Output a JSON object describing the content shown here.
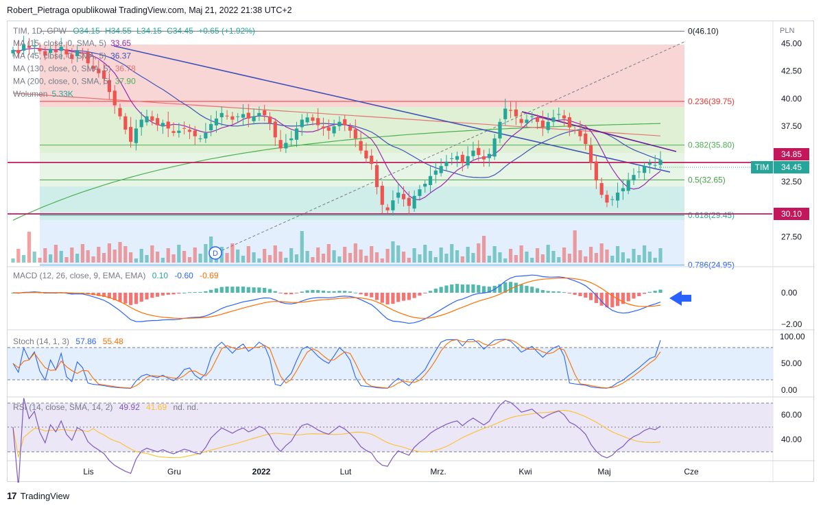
{
  "header": {
    "published_by": "Robert_Pietraga opublikował TradingView.com, Maj 21, 2022 21:38 UTC+2"
  },
  "footer": {
    "brand": "TradingView"
  },
  "chart_data": {
    "type": "candlestick",
    "symbol_line": {
      "symbol": "TIM, 1D, GPW",
      "open": "O34.15",
      "high": "H34.55",
      "low": "L34.15",
      "close": "C34.45",
      "change": "+0.65 (+1.92%)"
    },
    "currency": "PLN",
    "indicator_legend": [
      {
        "label": "MA (15, close, 0, SMA, 5)",
        "value": "33.65",
        "color": "#9c27b0"
      },
      {
        "label": "MA (45, close, 0, SMA, 5)",
        "value": "36.37",
        "color": "#3f51b5"
      },
      {
        "label": "MA (130, close, 0, SMA, 5)",
        "value": "36.78",
        "color": "#e57373"
      },
      {
        "label": "MA (200, close, 0, SMA, 5)",
        "value": "37.90",
        "color": "#4caf50"
      },
      {
        "label": "Wolumen",
        "value": "5.33K",
        "color": "#26a69a"
      }
    ],
    "price_axis": {
      "ticks": [
        "45.00",
        "42.50",
        "40.00",
        "37.50",
        "32.50",
        "27.50"
      ],
      "range": [
        24.8,
        47.0
      ]
    },
    "fib_levels": [
      {
        "label": "0(46.10)",
        "price": 46.1
      },
      {
        "label": "0.236(39.75)",
        "price": 39.75
      },
      {
        "label": "0.382(35.80)",
        "price": 35.8
      },
      {
        "label": "0.5(32.65)",
        "price": 32.65
      },
      {
        "label": "0.618(29.45)",
        "price": 29.45
      },
      {
        "label": "0.786(24.95)",
        "price": 24.95
      }
    ],
    "horizontal_lines": [
      {
        "price": 34.85,
        "label": "34.85"
      },
      {
        "price": 30.1,
        "label": "30.10"
      }
    ],
    "last_price": {
      "symbol": "TIM",
      "value": "34.45",
      "price": 34.45
    },
    "time_axis": [
      "Lis",
      "Gru",
      "2022",
      "Lut",
      "Mrz.",
      "Kwi",
      "Maj",
      "Cze"
    ],
    "dividend_marker": "D",
    "closes": [
      44.4,
      44.1,
      44.9,
      44.6,
      44.8,
      44.3,
      43.9,
      44.5,
      44.2,
      44.7,
      44.0,
      43.6,
      44.3,
      44.1,
      43.2,
      42.7,
      42.3,
      41.8,
      40.6,
      39.4,
      38.4,
      37.2,
      36.1,
      37.3,
      38.1,
      38.4,
      38.0,
      37.6,
      37.8,
      37.3,
      36.9,
      37.1,
      37.3,
      37.0,
      36.6,
      36.4,
      36.9,
      37.7,
      38.2,
      38.7,
      38.4,
      38.1,
      38.4,
      38.6,
      38.2,
      38.4,
      38.7,
      38.5,
      37.8,
      36.5,
      35.5,
      36.0,
      36.4,
      37.3,
      38.1,
      38.3,
      38.0,
      37.6,
      37.3,
      37.1,
      37.5,
      37.9,
      37.6,
      37.1,
      36.4,
      35.3,
      34.6,
      34.1,
      32.0,
      30.4,
      29.9,
      30.8,
      31.5,
      30.9,
      30.3,
      31.2,
      31.8,
      32.3,
      33.0,
      33.5,
      33.9,
      34.3,
      34.6,
      34.8,
      34.2,
      34.8,
      35.3,
      34.9,
      34.5,
      35.0,
      36.4,
      37.9,
      39.1,
      38.9,
      38.4,
      37.8,
      38.1,
      38.4,
      37.9,
      37.4,
      37.9,
      38.3,
      38.6,
      38.2,
      37.4,
      37.1,
      36.6,
      35.9,
      34.2,
      32.6,
      31.3,
      30.6,
      30.9,
      31.5,
      31.9,
      32.6,
      33.1,
      33.4,
      33.9,
      34.2,
      34.0,
      34.45
    ],
    "macd": {
      "label": "MACD (12, 26, close, 9, EMA, EMA)",
      "histogram": "0.10",
      "macd": "-0.60",
      "signal": "-0.69",
      "ticks": [
        "0.00",
        "−2.00"
      ]
    },
    "stoch": {
      "label": "Stoch (14, 1, 3)",
      "k": "57.86",
      "d": "55.48",
      "ticks": [
        "100.00",
        "50.00",
        "0.00"
      ]
    },
    "rsi": {
      "label": "RSI (14, close, SMA, 14, 2)",
      "rsi": "49.92",
      "ma": "41.69",
      "extra": "nd.  nd.",
      "ticks": [
        "60.00",
        "40.00"
      ]
    },
    "colors": {
      "up": "#26a69a",
      "down": "#ef5350",
      "trendline": "#3f51b5",
      "level": "#c2185b",
      "arrow": "#2962ff"
    }
  }
}
